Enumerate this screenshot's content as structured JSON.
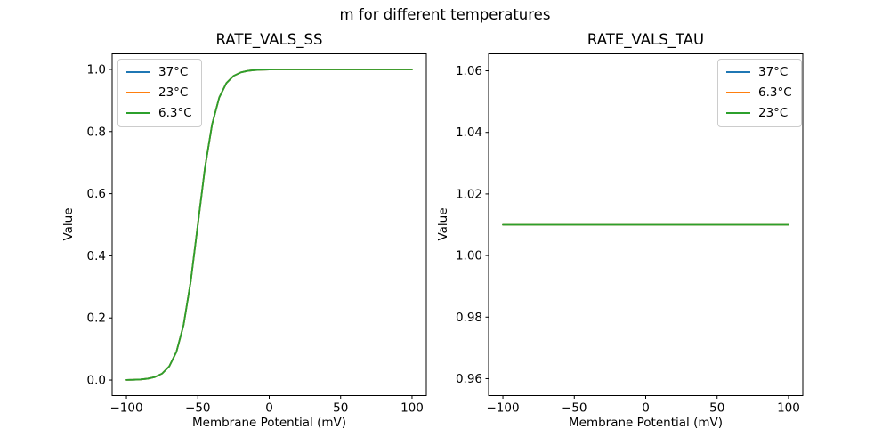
{
  "suptitle": "m for different temperatures",
  "chart_data": [
    {
      "type": "line",
      "title": "RATE_VALS_SS",
      "xlabel": "Membrane Potential (mV)",
      "ylabel": "Value",
      "xlim": [
        -110,
        110
      ],
      "ylim": [
        -0.05,
        1.05
      ],
      "grid": false,
      "xticks": [
        -100,
        -50,
        0,
        50,
        100
      ],
      "xtick_labels": [
        "−100",
        "−50",
        "0",
        "50",
        "100"
      ],
      "yticks": [
        0.0,
        0.2,
        0.4,
        0.6,
        0.8,
        1.0
      ],
      "ytick_labels": [
        "0.0",
        "0.2",
        "0.4",
        "0.6",
        "0.8",
        "1.0"
      ],
      "legend_position": "upper left",
      "note": "all three temperature curves overlap exactly; only the last-drawn (green) is visible",
      "x": [
        -100,
        -95,
        -90,
        -85,
        -80,
        -75,
        -70,
        -65,
        -60,
        -55,
        -50,
        -45,
        -40,
        -35,
        -30,
        -25,
        -20,
        -15,
        -10,
        -5,
        0,
        5,
        10,
        15,
        20,
        25,
        30,
        35,
        40,
        45,
        50,
        55,
        60,
        65,
        70,
        75,
        80,
        85,
        90,
        95,
        100
      ],
      "series": [
        {
          "label": "37°C",
          "color": "#1f77b4",
          "values": [
            0.0005,
            0.001,
            0.0021,
            0.0046,
            0.0098,
            0.0209,
            0.0441,
            0.0905,
            0.1768,
            0.3166,
            0.5,
            0.6834,
            0.8232,
            0.9095,
            0.9559,
            0.9791,
            0.9902,
            0.9954,
            0.9979,
            0.999,
            0.9995,
            0.9998,
            0.9999,
            1.0,
            1.0,
            1.0,
            1.0,
            1.0,
            1.0,
            1.0,
            1.0,
            1.0,
            1.0,
            1.0,
            1.0,
            1.0,
            1.0,
            1.0,
            1.0,
            1.0,
            1.0
          ]
        },
        {
          "label": "23°C",
          "color": "#ff7f0e",
          "values": [
            0.0005,
            0.001,
            0.0021,
            0.0046,
            0.0098,
            0.0209,
            0.0441,
            0.0905,
            0.1768,
            0.3166,
            0.5,
            0.6834,
            0.8232,
            0.9095,
            0.9559,
            0.9791,
            0.9902,
            0.9954,
            0.9979,
            0.999,
            0.9995,
            0.9998,
            0.9999,
            1.0,
            1.0,
            1.0,
            1.0,
            1.0,
            1.0,
            1.0,
            1.0,
            1.0,
            1.0,
            1.0,
            1.0,
            1.0,
            1.0,
            1.0,
            1.0,
            1.0,
            1.0
          ]
        },
        {
          "label": "6.3°C",
          "color": "#2ca02c",
          "values": [
            0.0005,
            0.001,
            0.0021,
            0.0046,
            0.0098,
            0.0209,
            0.0441,
            0.0905,
            0.1768,
            0.3166,
            0.5,
            0.6834,
            0.8232,
            0.9095,
            0.9559,
            0.9791,
            0.9902,
            0.9954,
            0.9979,
            0.999,
            0.9995,
            0.9998,
            0.9999,
            1.0,
            1.0,
            1.0,
            1.0,
            1.0,
            1.0,
            1.0,
            1.0,
            1.0,
            1.0,
            1.0,
            1.0,
            1.0,
            1.0,
            1.0,
            1.0,
            1.0,
            1.0
          ]
        }
      ]
    },
    {
      "type": "line",
      "title": "RATE_VALS_TAU",
      "xlabel": "Membrane Potential (mV)",
      "ylabel": "Value",
      "xlim": [
        -110,
        110
      ],
      "ylim": [
        0.9545,
        1.0655
      ],
      "grid": false,
      "xticks": [
        -100,
        -50,
        0,
        50,
        100
      ],
      "xtick_labels": [
        "−100",
        "−50",
        "0",
        "50",
        "100"
      ],
      "yticks": [
        0.96,
        0.98,
        1.0,
        1.02,
        1.04,
        1.06
      ],
      "ytick_labels": [
        "0.96",
        "0.98",
        "1.00",
        "1.02",
        "1.04",
        "1.06"
      ],
      "legend_position": "upper right",
      "note": "all three temperature curves are the constant 1.01 and overlap exactly; only the last-drawn (green) is visible",
      "x": [
        -100,
        100
      ],
      "series": [
        {
          "label": "37°C",
          "color": "#1f77b4",
          "values": [
            1.01,
            1.01
          ]
        },
        {
          "label": "6.3°C",
          "color": "#ff7f0e",
          "values": [
            1.01,
            1.01
          ]
        },
        {
          "label": "23°C",
          "color": "#2ca02c",
          "values": [
            1.01,
            1.01
          ]
        }
      ]
    }
  ]
}
